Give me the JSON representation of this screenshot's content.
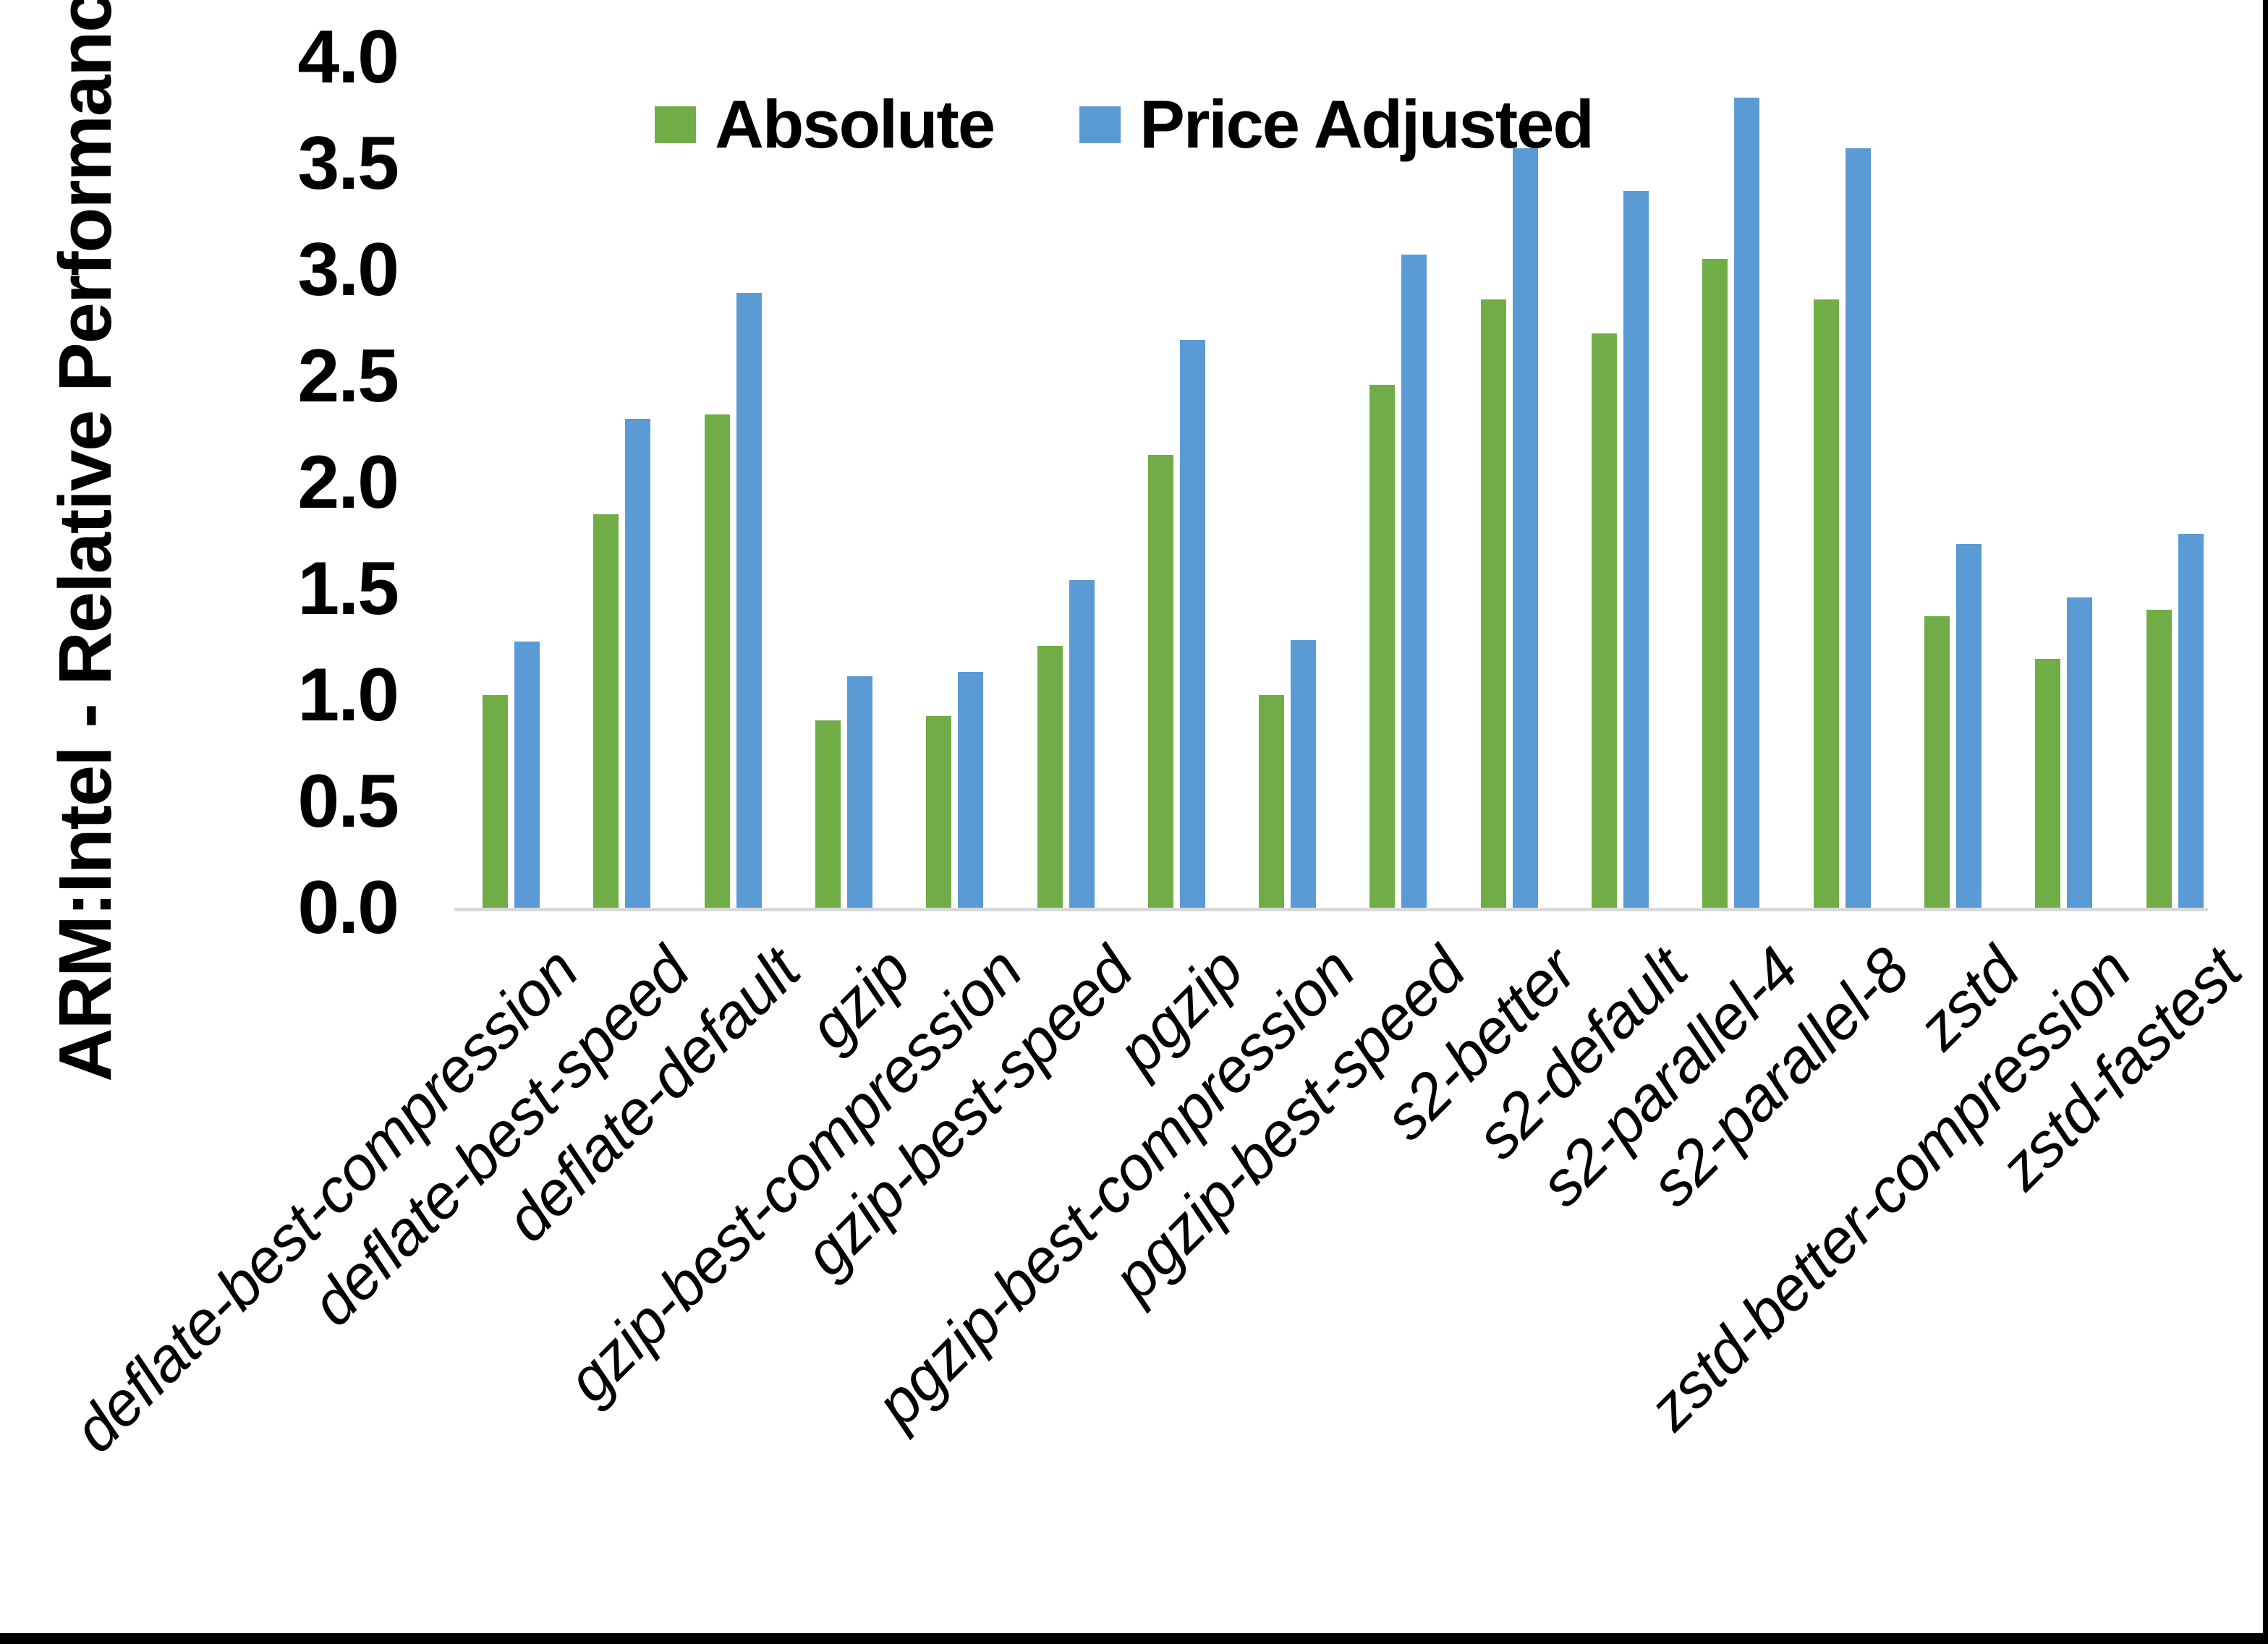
{
  "chart_data": {
    "type": "bar",
    "title": "",
    "xlabel": "",
    "ylabel": "ARM:Intel - Relative Performance",
    "ylim": [
      0.0,
      4.0
    ],
    "ytick_step": 0.5,
    "yticks": [
      "4.0",
      "3.5",
      "3.0",
      "2.5",
      "2.0",
      "1.5",
      "1.0",
      "0.5",
      "0.0"
    ],
    "grid": false,
    "legend_position": "top-center",
    "categories": [
      "deflate-best-compression",
      "deflate-best-speed",
      "deflate-default",
      "gzip",
      "gzip-best-compression",
      "gzip-best-speed",
      "pgzip",
      "pgzip-best-compression",
      "pgzip-best-speed",
      "s2-better",
      "s2-default",
      "s2-parallel-4",
      "s2-parallel-8",
      "zstd",
      "zstd-better-compression",
      "zstd-fastest"
    ],
    "series": [
      {
        "name": "Absolute",
        "color": "#70AD47",
        "values": [
          1.0,
          1.85,
          2.32,
          0.88,
          0.9,
          1.23,
          2.13,
          1.0,
          2.46,
          2.86,
          2.7,
          3.05,
          2.86,
          1.37,
          1.17,
          1.4
        ]
      },
      {
        "name": "Price Adjusted",
        "color": "#5B9BD5",
        "values": [
          1.25,
          2.3,
          2.89,
          1.09,
          1.11,
          1.54,
          2.67,
          1.26,
          3.07,
          3.57,
          3.37,
          3.81,
          3.57,
          1.71,
          1.46,
          1.76
        ]
      }
    ]
  },
  "colors": {
    "axis_line": "#d9d9d9",
    "text": "#000000",
    "background": "#ffffff",
    "frame_edge": "#000000"
  }
}
